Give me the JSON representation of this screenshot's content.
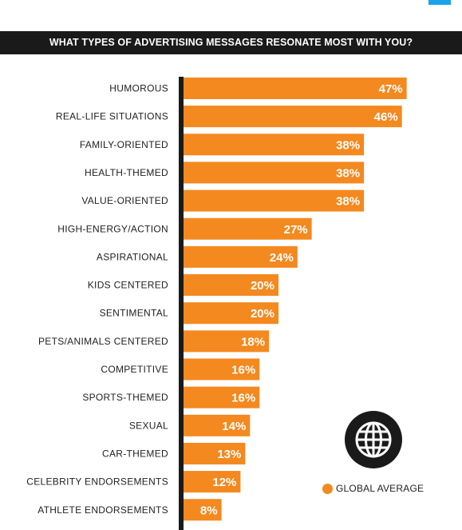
{
  "header": {
    "title": "WHAT TYPES OF ADVERTISING MESSAGES RESONATE MOST WITH YOU?"
  },
  "chart_data": {
    "type": "bar",
    "orientation": "horizontal",
    "title": "WHAT TYPES OF ADVERTISING MESSAGES RESONATE MOST WITH YOU?",
    "xlabel": "",
    "ylabel": "",
    "unit": "%",
    "xlim": [
      0,
      50
    ],
    "grid": false,
    "legend_position": "bottom-right",
    "bar_color": "#f4891f",
    "categories": [
      "HUMOROUS",
      "REAL-LIFE SITUATIONS",
      "FAMILY-ORIENTED",
      "HEALTH-THEMED",
      "VALUE-ORIENTED",
      "HIGH-ENERGY/ACTION",
      "ASPIRATIONAL",
      "KIDS CENTERED",
      "SENTIMENTAL",
      "PETS/ANIMALS CENTERED",
      "COMPETITIVE",
      "SPORTS-THEMED",
      "SEXUAL",
      "CAR-THEMED",
      "CELEBRITY ENDORSEMENTS",
      "ATHLETE ENDORSEMENTS"
    ],
    "series": [
      {
        "name": "GLOBAL AVERAGE",
        "values": [
          47,
          46,
          38,
          38,
          38,
          27,
          24,
          20,
          20,
          18,
          16,
          16,
          14,
          13,
          12,
          8
        ]
      }
    ]
  },
  "legend": {
    "label": "GLOBAL AVERAGE",
    "color": "#f4891f"
  },
  "badge": {
    "icon": "globe-icon"
  },
  "colors": {
    "accent": "#f4891f",
    "dark": "#1a1a1a",
    "corner_tab": "#1aa3e8"
  }
}
